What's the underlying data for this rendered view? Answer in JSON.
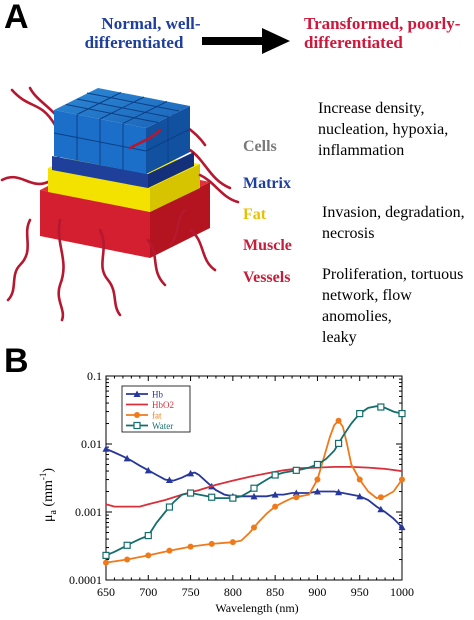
{
  "panel_a": {
    "label": "A",
    "left_header": [
      "Normal, well-",
      "differentiated"
    ],
    "right_header": [
      "Transformed, poorly-",
      "differentiated"
    ],
    "layers": [
      {
        "name": "Cells",
        "color": "#7a7a7a"
      },
      {
        "name": "Matrix",
        "color": "#1f3f9e"
      },
      {
        "name": "Fat",
        "color": "#e6c100"
      },
      {
        "name": "Muscle",
        "color": "#c41e3a"
      },
      {
        "name": "Vessels",
        "color": "#c41e3a"
      }
    ],
    "descriptions": [
      [
        "Increase density,",
        "nucleation, hypoxia,",
        "inflammation"
      ],
      [
        "Invasion, degradation,",
        "necrosis"
      ],
      [
        "Proliferation, tortuous",
        "network, flow",
        "anomolies,",
        "leaky"
      ]
    ],
    "colors": {
      "normal": "#1f3f9e",
      "transformed": "#d0163a"
    }
  },
  "panel_b": {
    "label": "B"
  },
  "chart_data": {
    "type": "line",
    "xlabel": "Wavelength (nm)",
    "ylabel": "μa (mm⁻¹)",
    "xlim": [
      650,
      1000
    ],
    "ylim": [
      0.0001,
      0.1
    ],
    "yscale": "log",
    "xticks": [
      650,
      700,
      750,
      800,
      850,
      900,
      950,
      1000
    ],
    "yticks": [
      {
        "value": 0.0001,
        "label": "0.0001"
      },
      {
        "value": 0.001,
        "label": "0.001"
      },
      {
        "value": 0.01,
        "label": "0.01"
      },
      {
        "value": 0.1,
        "label": "0.1"
      }
    ],
    "legend_position": "top-left",
    "series": [
      {
        "name": "Hb",
        "color": "#27379a",
        "marker": "triangle",
        "x": [
          650,
          660,
          670,
          680,
          690,
          700,
          710,
          720,
          730,
          740,
          750,
          755,
          760,
          770,
          780,
          790,
          800,
          810,
          820,
          830,
          840,
          850,
          860,
          870,
          880,
          890,
          900,
          910,
          920,
          930,
          940,
          950,
          960,
          970,
          980,
          990,
          1000
        ],
        "y": [
          0.0085,
          0.0075,
          0.0066,
          0.0057,
          0.0048,
          0.0041,
          0.0035,
          0.003,
          0.0029,
          0.0032,
          0.0037,
          0.0038,
          0.0035,
          0.0027,
          0.0021,
          0.0018,
          0.0017,
          0.0017,
          0.0017,
          0.0017,
          0.0017,
          0.0018,
          0.0018,
          0.0019,
          0.0019,
          0.0019,
          0.002,
          0.002,
          0.002,
          0.0019,
          0.0018,
          0.0017,
          0.0015,
          0.0012,
          0.001,
          0.0008,
          0.0006
        ],
        "markers_x": [
          650,
          675,
          700,
          725,
          750,
          775,
          800,
          825,
          850,
          875,
          900,
          925,
          950,
          975,
          1000
        ]
      },
      {
        "name": "HbO2",
        "color": "#d8303a",
        "marker": "none",
        "x": [
          650,
          660,
          670,
          680,
          690,
          700,
          720,
          740,
          760,
          780,
          800,
          820,
          840,
          860,
          880,
          900,
          920,
          940,
          960,
          980,
          1000
        ],
        "y": [
          0.0013,
          0.0012,
          0.0012,
          0.0012,
          0.0012,
          0.0013,
          0.0015,
          0.0018,
          0.0021,
          0.0025,
          0.0029,
          0.0033,
          0.0037,
          0.0041,
          0.0044,
          0.0045,
          0.0046,
          0.0046,
          0.0045,
          0.0043,
          0.004
        ],
        "markers_x": []
      },
      {
        "name": "fat",
        "color": "#f07a1a",
        "marker": "circle",
        "x": [
          650,
          675,
          700,
          725,
          750,
          775,
          800,
          810,
          820,
          830,
          840,
          850,
          860,
          870,
          880,
          890,
          900,
          910,
          915,
          920,
          925,
          930,
          935,
          940,
          950,
          960,
          970,
          980,
          990,
          1000
        ],
        "y": [
          0.00018,
          0.0002,
          0.00023,
          0.00027,
          0.00031,
          0.00034,
          0.00036,
          0.00038,
          0.0005,
          0.0007,
          0.00095,
          0.0012,
          0.0014,
          0.0016,
          0.0017,
          0.0018,
          0.003,
          0.008,
          0.013,
          0.019,
          0.022,
          0.018,
          0.01,
          0.005,
          0.003,
          0.002,
          0.0016,
          0.0017,
          0.002,
          0.003
        ],
        "markers_x": [
          650,
          675,
          700,
          725,
          750,
          775,
          800,
          825,
          850,
          875,
          900,
          925,
          950,
          975,
          1000
        ]
      },
      {
        "name": "Water",
        "color": "#156e6c",
        "marker": "square",
        "x": [
          650,
          660,
          670,
          680,
          690,
          700,
          710,
          720,
          730,
          740,
          750,
          760,
          770,
          780,
          790,
          800,
          810,
          820,
          830,
          840,
          850,
          860,
          870,
          880,
          890,
          900,
          910,
          920,
          930,
          940,
          950,
          960,
          970,
          980,
          990,
          1000
        ],
        "y": [
          0.00023,
          0.00026,
          0.0003,
          0.00035,
          0.0004,
          0.00045,
          0.0007,
          0.001,
          0.0014,
          0.0018,
          0.0019,
          0.0018,
          0.0017,
          0.0016,
          0.0016,
          0.0016,
          0.0017,
          0.002,
          0.0025,
          0.003,
          0.0035,
          0.0038,
          0.004,
          0.0042,
          0.0045,
          0.005,
          0.006,
          0.008,
          0.013,
          0.02,
          0.028,
          0.034,
          0.036,
          0.034,
          0.03,
          0.028
        ],
        "markers_x": [
          650,
          675,
          700,
          725,
          750,
          775,
          800,
          825,
          850,
          875,
          900,
          925,
          950,
          975,
          1000
        ]
      }
    ]
  }
}
